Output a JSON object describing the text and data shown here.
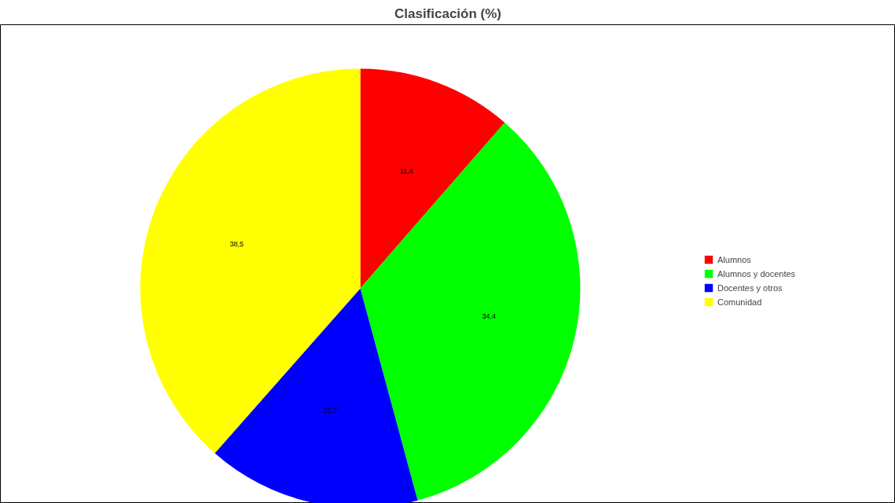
{
  "chart_data": {
    "type": "pie",
    "title": "Clasificación (%)",
    "categories": [
      "Alumnos",
      "Alumnos y docentes",
      "Docentes y otros",
      "Comunidad"
    ],
    "values": [
      11.4,
      34.4,
      15.7,
      38.5
    ],
    "colors": [
      "#ff0000",
      "#00ff00",
      "#0000ff",
      "#ffff00"
    ],
    "value_labels": [
      "11,4",
      "34,4",
      "15,7",
      "38,5"
    ],
    "legend": "right"
  }
}
